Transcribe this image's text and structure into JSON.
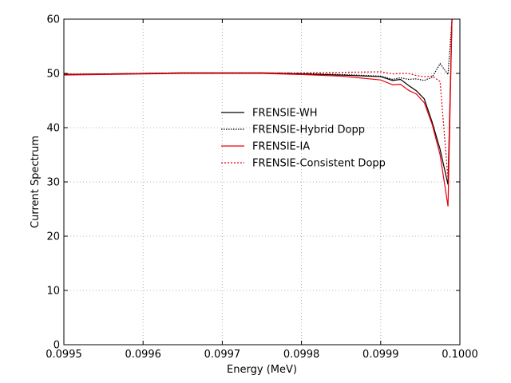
{
  "chart_data": {
    "type": "line",
    "xlabel": "Energy (MeV)",
    "ylabel": "Current Spectrum",
    "xlim": [
      0.0995,
      0.1
    ],
    "ylim": [
      0,
      60
    ],
    "xticks": [
      "0.0995",
      "0.0996",
      "0.0997",
      "0.0998",
      "0.0999",
      "0.1000"
    ],
    "xtick_values": [
      0.0995,
      0.0996,
      0.0997,
      0.0998,
      0.0999,
      0.1
    ],
    "yticks": [
      "0",
      "10",
      "20",
      "30",
      "40",
      "50",
      "60"
    ],
    "ytick_values": [
      0,
      10,
      20,
      30,
      40,
      50,
      60
    ],
    "grid": true,
    "legend_position": "center",
    "series": [
      {
        "name": "FRENSIE-WH",
        "color": "#000000",
        "style": "solid",
        "x": [
          0.0995,
          0.09955,
          0.0996,
          0.09965,
          0.0997,
          0.09975,
          0.0998,
          0.09985,
          0.0999,
          0.099915,
          0.099925,
          0.099935,
          0.099945,
          0.099955,
          0.099965,
          0.099975,
          0.099985,
          0.09999
        ],
        "y": [
          49.8,
          49.9,
          50.0,
          50.1,
          50.1,
          50.1,
          49.9,
          49.7,
          49.4,
          48.7,
          48.9,
          47.8,
          46.8,
          45.3,
          41.0,
          36.0,
          29.5,
          60.0
        ]
      },
      {
        "name": "FRENSIE-Hybrid Dopp",
        "color": "#000000",
        "style": "dotted",
        "x": [
          0.0995,
          0.09955,
          0.0996,
          0.09965,
          0.0997,
          0.09975,
          0.0998,
          0.09985,
          0.0999,
          0.099915,
          0.099925,
          0.099935,
          0.099945,
          0.099955,
          0.099965,
          0.099975,
          0.099985,
          0.09999
        ],
        "y": [
          49.8,
          49.9,
          50.0,
          50.1,
          50.1,
          50.1,
          50.0,
          49.8,
          49.5,
          48.9,
          49.2,
          48.9,
          49.0,
          48.7,
          49.3,
          51.8,
          49.8,
          60.0
        ]
      },
      {
        "name": "FRENSIE-IA",
        "color": "#e8000b",
        "style": "solid",
        "x": [
          0.0995,
          0.09955,
          0.0996,
          0.09965,
          0.0997,
          0.09975,
          0.0998,
          0.09985,
          0.0999,
          0.099915,
          0.099925,
          0.099935,
          0.099945,
          0.099955,
          0.099965,
          0.099975,
          0.099985,
          0.09999
        ],
        "y": [
          49.7,
          49.8,
          49.9,
          50.0,
          50.0,
          50.0,
          49.8,
          49.5,
          48.8,
          47.9,
          48.0,
          46.9,
          46.2,
          44.6,
          40.6,
          35.0,
          25.5,
          60.0
        ]
      },
      {
        "name": "FRENSIE-Consistent Dopp",
        "color": "#e8000b",
        "style": "dashed",
        "x": [
          0.0995,
          0.09955,
          0.0996,
          0.09965,
          0.0997,
          0.09975,
          0.0998,
          0.09985,
          0.0999,
          0.099915,
          0.099925,
          0.099935,
          0.099945,
          0.099955,
          0.099965,
          0.099975,
          0.099985,
          0.09999
        ],
        "y": [
          49.9,
          49.9,
          50.0,
          50.1,
          50.1,
          50.1,
          50.1,
          50.2,
          50.3,
          49.9,
          50.0,
          50.0,
          49.6,
          49.4,
          49.5,
          48.5,
          30.5,
          60.0
        ]
      }
    ]
  }
}
